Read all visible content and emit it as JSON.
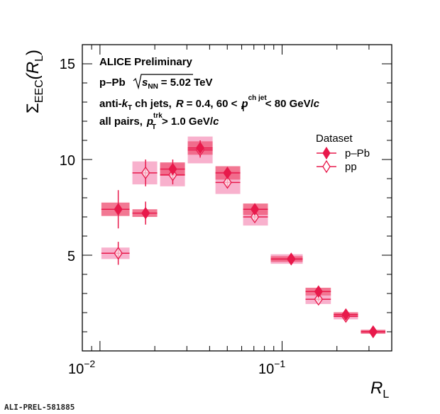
{
  "chart_data": {
    "type": "scatter",
    "x_scale": "log",
    "xlim": [
      0.008,
      0.4
    ],
    "ylim": [
      0,
      16
    ],
    "x_tick_labels": [
      "10",
      "−2",
      "10",
      "−1"
    ],
    "y_tick_labels": [
      "5",
      "10",
      "15"
    ],
    "xlabel": {
      "main": "R",
      "sub": "L"
    },
    "ylabel": {
      "main": "Σ",
      "sub": "EEC",
      "arg_open": "(R",
      "arg_sub": "L",
      "arg_close": ")"
    },
    "annotations": {
      "line1": "ALICE Preliminary",
      "line2_a": "p–Pb",
      "line2_s": "s",
      "line2_nn": "NN",
      "line2_b": "= 5.02 TeV",
      "line3_a": "anti-",
      "line3_k": "k",
      "line3_ksub": "T",
      "line3_b": "ch jets,",
      "line3_r": "R",
      "line3_c": "= 0.4, 60 <",
      "line3_p": "p",
      "line3_psup": "ch jet",
      "line3_psub": "T",
      "line3_d": "< 80 GeV/",
      "line3_cc": "c",
      "line4_a": "all pairs,",
      "line4_p": "p",
      "line4_psup": "trk",
      "line4_psub": "T",
      "line4_b": "> 1.0 GeV/",
      "line4_c": "c"
    },
    "legend": {
      "title": "Dataset",
      "position": "right"
    },
    "series": [
      {
        "name": "p–Pb",
        "marker": "filled-diamond",
        "color": "#e8194b",
        "sys_color": "#f06080",
        "x": [
          0.0126,
          0.0178,
          0.0251,
          0.0355,
          0.0501,
          0.0708,
          0.1122,
          0.1585,
          0.2239,
          0.3162
        ],
        "y": [
          7.4,
          7.2,
          9.5,
          10.6,
          9.3,
          7.4,
          4.8,
          3.1,
          1.9,
          1.0
        ],
        "yerr": [
          1.0,
          0.6,
          0.5,
          0.4,
          0.25,
          0.2,
          0.15,
          0.12,
          0.08,
          0.05
        ],
        "sys": [
          0.35,
          0.2,
          0.35,
          0.35,
          0.35,
          0.3,
          0.15,
          0.2,
          0.12,
          0.1
        ]
      },
      {
        "name": "pp",
        "marker": "open-diamond",
        "color": "#e8194b",
        "sys_color": "#f7a8c8",
        "x": [
          0.0126,
          0.0178,
          0.0251,
          0.0355,
          0.0501,
          0.0708,
          0.1122,
          0.1585,
          0.2239,
          0.3162
        ],
        "y": [
          5.1,
          9.3,
          9.2,
          10.5,
          8.8,
          7.0,
          4.8,
          2.7,
          1.8,
          1.0
        ],
        "yerr": [
          0.6,
          0.7,
          0.5,
          0.4,
          0.3,
          0.2,
          0.12,
          0.1,
          0.08,
          0.05
        ],
        "sys": [
          0.3,
          0.6,
          0.6,
          0.7,
          0.6,
          0.45,
          0.25,
          0.25,
          0.15,
          0.1
        ]
      }
    ],
    "bin_edges": [
      0.01,
      0.0148,
      0.021,
      0.0298,
      0.0423,
      0.06,
      0.0851,
      0.1321,
      0.1886,
      0.2659,
      0.3758
    ]
  },
  "footer": "ALI-PREL-581885"
}
